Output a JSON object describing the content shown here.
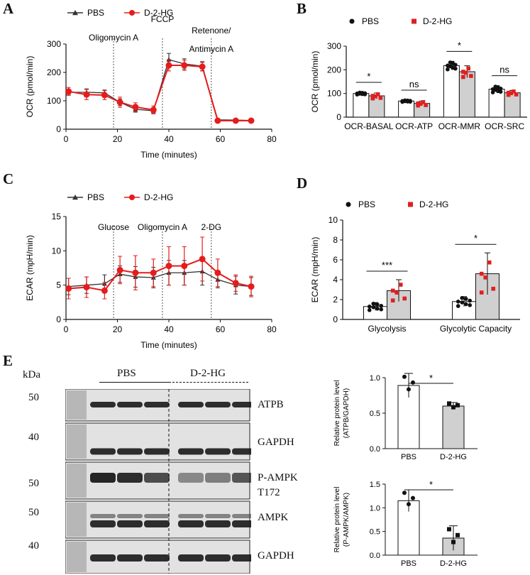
{
  "panels": {
    "A": "A",
    "B": "B",
    "C": "C",
    "D": "D",
    "E": "E"
  },
  "chartA": {
    "type": "line",
    "ylabel": "OCR (pmol/min)",
    "xlabel": "Time (minutes)",
    "xlim": [
      0,
      80
    ],
    "ylim": [
      0,
      300
    ],
    "xticks": [
      0,
      20,
      40,
      60,
      80
    ],
    "yticks": [
      0,
      100,
      200,
      300
    ],
    "legend": [
      "PBS",
      "D-2-HG"
    ],
    "annotations": [
      {
        "text": "Oligomycin A",
        "x": 18.5
      },
      {
        "text": "FCCP",
        "x": 37.5
      },
      {
        "text": "Retenone/",
        "x": 56.5
      },
      {
        "text": "Antimycin A",
        "x": 56.5
      }
    ],
    "series": [
      {
        "name": "PBS",
        "color": "#333333",
        "x": [
          1,
          8,
          15,
          21,
          27,
          34,
          40,
          46,
          53,
          59,
          66,
          72
        ],
        "y": [
          130,
          130,
          128,
          95,
          70,
          65,
          245,
          230,
          222,
          33,
          32,
          31
        ],
        "err": [
          10,
          12,
          10,
          12,
          10,
          8,
          22,
          18,
          16,
          4,
          3,
          3
        ]
      },
      {
        "name": "D-2-HG",
        "color": "#e51c1c",
        "x": [
          1,
          8,
          15,
          21,
          27,
          34,
          40,
          46,
          53,
          59,
          66,
          72
        ],
        "y": [
          133,
          122,
          120,
          95,
          78,
          68,
          225,
          225,
          220,
          30,
          30,
          30
        ],
        "err": [
          14,
          18,
          16,
          18,
          15,
          14,
          20,
          18,
          15,
          5,
          4,
          3
        ]
      }
    ]
  },
  "chartB": {
    "type": "bar",
    "ylabel": "OCR (pmol/min)",
    "ylim": [
      0,
      300
    ],
    "yticks": [
      0,
      100,
      200,
      300
    ],
    "categories": [
      "OCR-BASAL",
      "OCR-ATP",
      "OCR-MMR",
      "OCR-SRC"
    ],
    "legend": [
      "PBS",
      "D-2-HG"
    ],
    "series": [
      {
        "name": "PBS",
        "values": [
          100,
          68,
          218,
          118
        ],
        "err": [
          5,
          4,
          18,
          15
        ]
      },
      {
        "name": "D-2-HG",
        "values": [
          90,
          58,
          192,
          103
        ],
        "err": [
          12,
          10,
          25,
          10
        ]
      }
    ],
    "sig": [
      "*",
      "ns",
      "*",
      "ns"
    ]
  },
  "chartC": {
    "type": "line",
    "ylabel": "ECAR (mpH/min)",
    "xlabel": "Time (minutes)",
    "xlim": [
      0,
      80
    ],
    "ylim": [
      0,
      15
    ],
    "xticks": [
      0,
      20,
      40,
      60,
      80
    ],
    "yticks": [
      0,
      5,
      10,
      15
    ],
    "legend": [
      "PBS",
      "D-2-HG"
    ],
    "annotations": [
      {
        "text": "Glucose",
        "x": 18.5
      },
      {
        "text": "Oligomycin A",
        "x": 37.5
      },
      {
        "text": "2-DG",
        "x": 56.5
      }
    ],
    "series": [
      {
        "name": "PBS",
        "color": "#333333",
        "x": [
          1,
          8,
          15,
          21,
          27,
          34,
          40,
          46,
          53,
          59,
          66,
          72
        ],
        "y": [
          4.8,
          5.0,
          5.2,
          6.6,
          6.2,
          6.1,
          6.8,
          6.8,
          7.0,
          5.8,
          5.0,
          4.8
        ],
        "err": [
          1.2,
          1.2,
          1.3,
          1.2,
          1.5,
          1.5,
          1.8,
          1.8,
          2.0,
          1.2,
          1.3,
          1.3
        ]
      },
      {
        "name": "D-2-HG",
        "color": "#e51c1c",
        "x": [
          1,
          8,
          15,
          21,
          27,
          34,
          40,
          46,
          53,
          59,
          66,
          72
        ],
        "y": [
          4.5,
          4.7,
          4.2,
          7.2,
          6.8,
          6.8,
          7.8,
          7.8,
          8.8,
          6.8,
          5.3,
          4.8
        ],
        "err": [
          1.5,
          1.5,
          1.2,
          2.0,
          2.5,
          2.0,
          2.8,
          2.8,
          3.2,
          2.0,
          1.2,
          1.5
        ]
      }
    ]
  },
  "chartD": {
    "type": "bar",
    "ylabel": "ECAR (mpH/min)",
    "ylim": [
      0,
      10
    ],
    "yticks": [
      0,
      2,
      4,
      6,
      8,
      10
    ],
    "categories": [
      "Glycolysis",
      "Glycolytic Capacity"
    ],
    "legend": [
      "PBS",
      "D-2-HG"
    ],
    "series": [
      {
        "name": "PBS",
        "values": [
          1.3,
          1.8
        ],
        "err": [
          0.4,
          0.5
        ]
      },
      {
        "name": "D-2-HG",
        "values": [
          2.9,
          4.6
        ],
        "err": [
          1.1,
          2.1
        ]
      }
    ],
    "sig": [
      "***",
      "*"
    ]
  },
  "chartE1": {
    "type": "bar",
    "ylabel": [
      "Relative protein level",
      "(ATPB/GAPDH)"
    ],
    "ylim": [
      0,
      1.0
    ],
    "yticks": [
      0.0,
      0.5,
      1.0
    ],
    "categories": [
      "PBS",
      "D-2-HG"
    ],
    "values": [
      0.89,
      0.6
    ],
    "err": [
      0.17,
      0.05
    ],
    "sig": "*"
  },
  "chartE2": {
    "type": "bar",
    "ylabel": [
      "Relative protein level",
      "(P-AMPK/AMPK)"
    ],
    "ylim": [
      0,
      1.5
    ],
    "yticks": [
      0.0,
      0.5,
      1.0,
      1.5
    ],
    "categories": [
      "PBS",
      "D-2-HG"
    ],
    "values": [
      1.15,
      0.36
    ],
    "err": [
      0.23,
      0.26
    ],
    "sig": "*"
  },
  "blot": {
    "kda": "kDa",
    "group_pbs": "PBS",
    "group_dhg": "D-2-HG",
    "rows": [
      {
        "label": "ATPB",
        "kda": "50"
      },
      {
        "label": "GAPDH",
        "kda": "40"
      },
      {
        "label": "P-AMPK",
        "label2": "T172",
        "kda": "50"
      },
      {
        "label": "AMPK",
        "kda": "50"
      },
      {
        "label": "GAPDH",
        "kda": "40"
      }
    ]
  }
}
